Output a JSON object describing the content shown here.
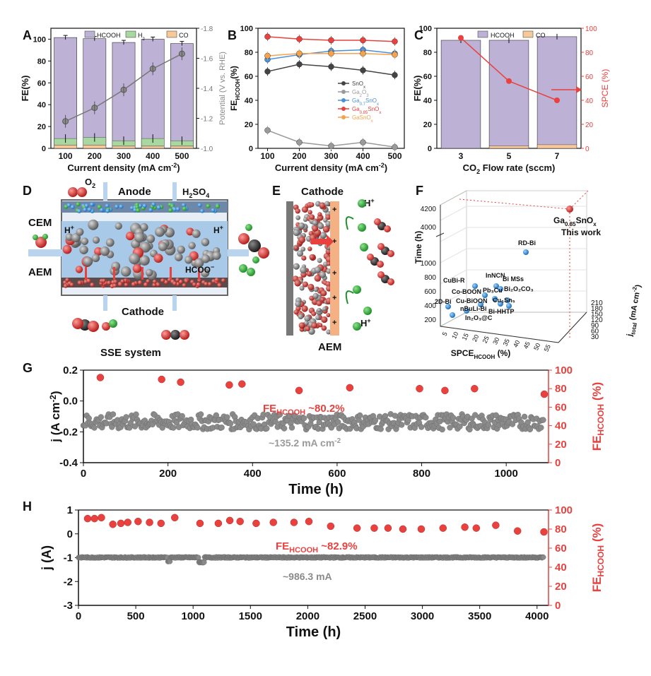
{
  "colors": {
    "hcooh": "#bdb1d6",
    "h2": "#a8d8a0",
    "co": "#f7c99a",
    "gray": "#6f6f6f",
    "red": "#e8413e",
    "blue": "#4a90d9",
    "orange": "#f5a24a",
    "dark": "#444444"
  },
  "panels": {
    "A": {
      "letter": "A",
      "xlabel": "Current density (mA cm",
      "xsup": "-2",
      "xclose": ")",
      "ylabel": "FE(%)",
      "y2label": "Potential (V vs. RHE)",
      "legend": [
        "HCOOH",
        "H",
        "CO"
      ],
      "legend_h2_sub": "2"
    },
    "B": {
      "letter": "B",
      "xlabel": "Current density (mA cm",
      "xsup": "-2",
      "xclose": ")",
      "ylabel_main": "FE",
      "ylabel_sub": "HCOOH",
      "ylabel_tail": "(%)",
      "legend": [
        {
          "base": "SnO",
          "sub": "x",
          "tail": ""
        },
        {
          "base": "Ga",
          "sub": "2",
          "tail": "O",
          "sub2": "3"
        },
        {
          "base": "Ga",
          "sub": "0.7",
          "tail": "SnO",
          "sub2": "x"
        },
        {
          "base": "Ga",
          "sub": "0.85",
          "tail": "SnO",
          "sub2": "x"
        },
        {
          "base": "GaSnO",
          "sub": "x",
          "tail": ""
        }
      ]
    },
    "C": {
      "letter": "C",
      "xlabel": "CO",
      "xsub": "2",
      "xtail": " Flow rate (sccm)",
      "ylabel": "FE(%)",
      "y2label": "SPCE (%)",
      "legend": [
        "HCOOH",
        "CO"
      ]
    },
    "D": {
      "letter": "D",
      "anode": "Anode",
      "h2so4": "H",
      "h2so4_sub": "2",
      "h2so4_tail": "SO",
      "h2so4_sub2": "4",
      "o2": "O",
      "o2_sub": "2",
      "cem": "CEM",
      "aem": "AEM",
      "hplus1": "H",
      "hplus2": "H",
      "hcoo": "HCOO",
      "cathode": "Cathode",
      "system": "SSE system"
    },
    "E": {
      "letter": "E",
      "cathode": "Cathode",
      "hplus1": "H",
      "hplus2": "H",
      "aem": "AEM"
    },
    "F": {
      "letter": "F",
      "yaxis": "Time (h)",
      "xaxis": "SPCE",
      "xaxis_sub": "HCOOH",
      "xaxis_tail": " (%)",
      "zaxis": "j",
      "zaxis_sub": "total",
      "zaxis_tail": " (mA cm",
      "zaxis_sup": "-2",
      "zaxis_close": ")",
      "highlight": "Ga",
      "highlight_sub": "0.85",
      "highlight_tail": "SnO",
      "highlight_sub2": "x",
      "highlight2": "This work",
      "labels": [
        "RD-Bi",
        "CuBi-R",
        "InNCN",
        "Bi MSs",
        "Co-BOON",
        "Pb",
        "Cu",
        "Bi",
        "O",
        "CO",
        "Cu-BiOON",
        "Cu",
        "Sn",
        "2D-Bi",
        "nBuLi-Bi",
        "Bi-HHTP",
        "In",
        "O",
        "@C"
      ]
    },
    "G": {
      "letter": "G",
      "xlabel": "Time (h)",
      "ylabel": "j (A cm",
      "ylabel_sup": "-2",
      "ylabel_close": ")",
      "y2label_main": "FE",
      "y2label_sub": "HCOOH",
      "y2label_tail": " (%)",
      "annot_fe": "FE",
      "annot_fe_sub": "HCOOH",
      "annot_fe_tail": " ~80.2%",
      "annot_j": "~135.2 mA cm",
      "annot_j_sup": "-2"
    },
    "H": {
      "letter": "H",
      "xlabel": "Time (h)",
      "ylabel": "j (A)",
      "y2label_main": "FE",
      "y2label_sub": "HCOOH",
      "y2label_tail": " (%)",
      "annot_fe": "FE",
      "annot_fe_sub": "HCOOH",
      "annot_fe_tail": " ~82.9%",
      "annot_j": "~986.3 mA"
    }
  },
  "chart_data": [
    {
      "panel": "A",
      "type": "bar",
      "categories": [
        "100",
        "200",
        "300",
        "400",
        "500"
      ],
      "xlabel": "Current density (mA cm-2)",
      "ylabel": "FE(%)",
      "ylim": [
        0,
        110
      ],
      "series": [
        {
          "name": "HCOOH",
          "values": [
            101.5,
            100.5,
            97,
            100,
            96
          ]
        },
        {
          "name": "H2",
          "values": [
            6,
            7,
            5,
            7,
            5
          ]
        },
        {
          "name": "CO",
          "values": [
            3,
            3,
            2,
            2,
            2
          ]
        }
      ],
      "secondary": {
        "name": "Potential (V vs. RHE)",
        "ylim": [
          -1.0,
          -1.8
        ],
        "values": [
          -1.18,
          -1.27,
          -1.39,
          -1.53,
          -1.63
        ]
      },
      "yticks": [
        0,
        20,
        40,
        60,
        80,
        100
      ],
      "y2ticks": [
        "-1.0",
        "-1.2",
        "-1.4",
        "-1.6",
        "-1.8"
      ]
    },
    {
      "panel": "B",
      "type": "line",
      "x": [
        100,
        200,
        300,
        400,
        500
      ],
      "xlabel": "Current density (mA cm-2)",
      "ylabel": "FE HCOOH (%)",
      "ylim": [
        0,
        100
      ],
      "series": [
        {
          "name": "SnOx",
          "values": [
            64,
            70,
            68,
            65,
            61
          ]
        },
        {
          "name": "Ga2O3",
          "values": [
            15,
            5,
            2,
            5,
            1
          ]
        },
        {
          "name": "Ga0.7SnOx",
          "values": [
            74,
            78,
            81,
            82,
            79
          ]
        },
        {
          "name": "Ga0.85SnOx",
          "values": [
            93,
            91,
            90,
            90,
            89
          ]
        },
        {
          "name": "GaSnOx",
          "values": [
            77,
            79,
            79,
            79,
            78
          ]
        }
      ],
      "yticks": [
        0,
        20,
        40,
        60,
        80,
        100
      ],
      "xticks": [
        100,
        200,
        300,
        400,
        500
      ]
    },
    {
      "panel": "C",
      "type": "bar",
      "categories": [
        "3",
        "5",
        "7"
      ],
      "xlabel": "CO2 Flow rate (sccm)",
      "ylabel": "FE(%)",
      "ylim": [
        0,
        100
      ],
      "series": [
        {
          "name": "HCOOH",
          "values": [
            90,
            90,
            93
          ]
        },
        {
          "name": "CO",
          "values": [
            0,
            2,
            3
          ]
        }
      ],
      "secondary": {
        "name": "SPCE (%)",
        "ylim": [
          0,
          100
        ],
        "values": [
          92,
          56,
          40
        ]
      },
      "yticks": [
        0,
        20,
        40,
        60,
        80,
        100
      ],
      "y2ticks": [
        0,
        20,
        40,
        60,
        80,
        100
      ]
    },
    {
      "panel": "F",
      "type": "scatter",
      "xlabel": "SPCE HCOOH (%)",
      "ylabel": "Time (h)",
      "zlabel": "j total (mA cm-2)",
      "yticks": [
        "200",
        "400",
        "600",
        "800",
        "1000",
        "4000",
        "4200"
      ],
      "xticks": [
        "5",
        "10",
        "15",
        "20",
        "25",
        "30",
        "35",
        "40",
        "45",
        "50",
        "55"
      ],
      "zticks": [
        "30",
        "60",
        "90",
        "120",
        "150",
        "180",
        "210"
      ]
    },
    {
      "panel": "G",
      "type": "scatter",
      "xlabel": "Time (h)",
      "ylabel": "j (A cm-2)",
      "y2label": "FE HCOOH (%)",
      "xlim": [
        0,
        1100
      ],
      "ylim": [
        -0.4,
        0.2
      ],
      "y2lim": [
        0,
        100
      ],
      "xticks": [
        0,
        200,
        400,
        600,
        800,
        1000
      ],
      "yticks": [
        "-0.4",
        "-0.2",
        "0.0",
        "0.2"
      ],
      "y2ticks": [
        0,
        20,
        40,
        60,
        80,
        100
      ],
      "series": [
        {
          "name": "FE",
          "x": [
            40,
            185,
            230,
            345,
            375,
            510,
            630,
            795,
            855,
            925,
            1090
          ],
          "values": [
            92,
            90,
            87,
            84,
            85,
            78,
            81,
            80,
            78,
            80,
            74
          ]
        },
        {
          "name": "j",
          "mean": -0.135,
          "jitter": 0.04,
          "xrange": [
            0,
            1090
          ]
        }
      ]
    },
    {
      "panel": "H",
      "type": "scatter",
      "xlabel": "Time (h)",
      "ylabel": "j (A)",
      "y2label": "FE HCOOH (%)",
      "xlim": [
        0,
        4100
      ],
      "ylim": [
        -3,
        1
      ],
      "y2lim": [
        0,
        100
      ],
      "xticks": [
        0,
        500,
        1000,
        1500,
        2000,
        2500,
        3000,
        3500,
        4000
      ],
      "yticks": [
        "-3",
        "-2",
        "-1",
        "0",
        "1"
      ],
      "y2ticks": [
        0,
        20,
        40,
        60,
        80,
        100
      ],
      "series": [
        {
          "name": "FE",
          "x": [
            80,
            140,
            200,
            300,
            370,
            430,
            520,
            620,
            720,
            840,
            1060,
            1220,
            1320,
            1410,
            1550,
            1700,
            1880,
            2010,
            2200,
            2430,
            2580,
            2700,
            2830,
            2990,
            3180,
            3370,
            3470,
            3640,
            3830,
            4060
          ],
          "values": [
            91,
            91,
            92,
            85,
            86,
            87,
            88,
            87,
            86,
            92,
            86,
            86,
            89,
            88,
            86,
            87,
            87,
            88,
            83,
            81,
            81,
            81,
            80,
            80,
            81,
            82,
            81,
            84,
            78,
            77
          ]
        },
        {
          "name": "j",
          "mean": -0.99,
          "jitter": 0.05,
          "xrange": [
            0,
            4060
          ]
        }
      ]
    }
  ]
}
